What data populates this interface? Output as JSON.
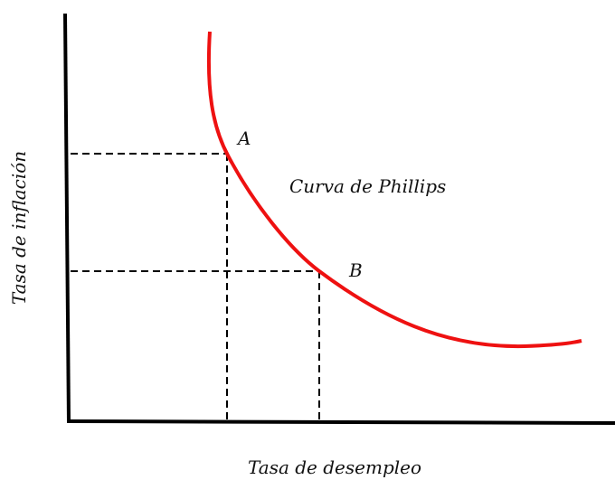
{
  "axes": {
    "y_label": "Tasa de inflación",
    "x_label": "Tasa de desempleo"
  },
  "points": [
    {
      "label": "A"
    },
    {
      "label": "B"
    }
  ],
  "curve": {
    "label": "Curva de Phillips"
  }
}
